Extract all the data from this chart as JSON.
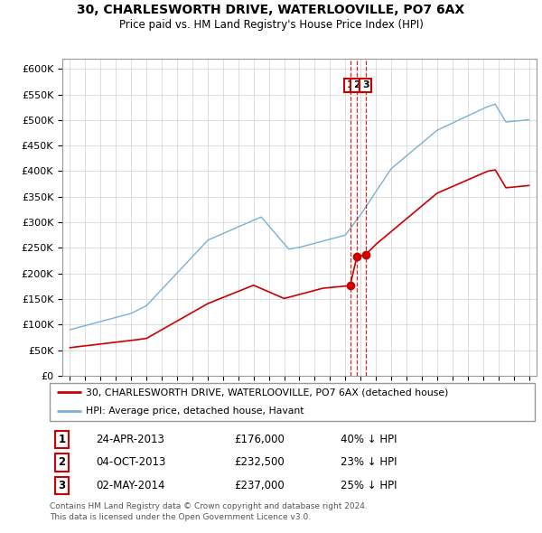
{
  "title": "30, CHARLESWORTH DRIVE, WATERLOOVILLE, PO7 6AX",
  "subtitle": "Price paid vs. HM Land Registry's House Price Index (HPI)",
  "ylabel_ticks": [
    "£0",
    "£50K",
    "£100K",
    "£150K",
    "£200K",
    "£250K",
    "£300K",
    "£350K",
    "£400K",
    "£450K",
    "£500K",
    "£550K",
    "£600K"
  ],
  "ytick_values": [
    0,
    50000,
    100000,
    150000,
    200000,
    250000,
    300000,
    350000,
    400000,
    450000,
    500000,
    550000,
    600000
  ],
  "xlim_start": 1994.5,
  "xlim_end": 2025.5,
  "ylim_min": 0,
  "ylim_max": 620000,
  "red_line_color": "#cc0000",
  "blue_line_color": "#7ab0d4",
  "transactions": [
    {
      "num": 1,
      "date_num": 2013.31,
      "price": 176000,
      "date_str": "24-APR-2013",
      "price_str": "£176,000",
      "hpi_str": "40% ↓ HPI"
    },
    {
      "num": 2,
      "date_num": 2013.75,
      "price": 232500,
      "date_str": "04-OCT-2013",
      "price_str": "£232,500",
      "hpi_str": "23% ↓ HPI"
    },
    {
      "num": 3,
      "date_num": 2014.33,
      "price": 237000,
      "date_str": "02-MAY-2014",
      "price_str": "£237,000",
      "hpi_str": "25% ↓ HPI"
    }
  ],
  "legend_red_label": "30, CHARLESWORTH DRIVE, WATERLOOVILLE, PO7 6AX (detached house)",
  "legend_blue_label": "HPI: Average price, detached house, Havant",
  "footer_line1": "Contains HM Land Registry data © Crown copyright and database right 2024.",
  "footer_line2": "This data is licensed under the Open Government Licence v3.0."
}
